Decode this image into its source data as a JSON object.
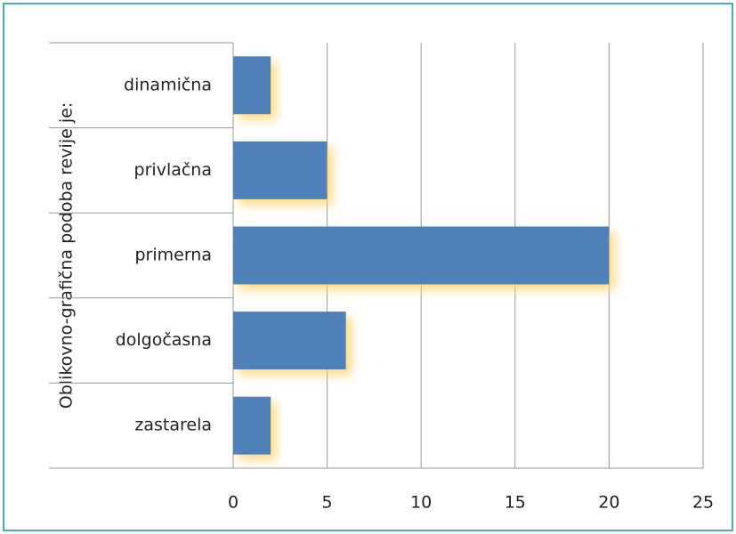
{
  "chart_data": {
    "type": "bar",
    "orientation": "horizontal",
    "ylabel": "Oblikovno-grafična podoba revije je:",
    "categories": [
      "dinamična",
      "privlačna",
      "primerna",
      "dolgočasna",
      "zastarela"
    ],
    "values": [
      2,
      5,
      20,
      6,
      2
    ],
    "color": "#4f81bd",
    "xlim": [
      0,
      25
    ],
    "xticks": [
      0,
      5,
      10,
      15,
      20,
      25
    ],
    "grid": true
  }
}
